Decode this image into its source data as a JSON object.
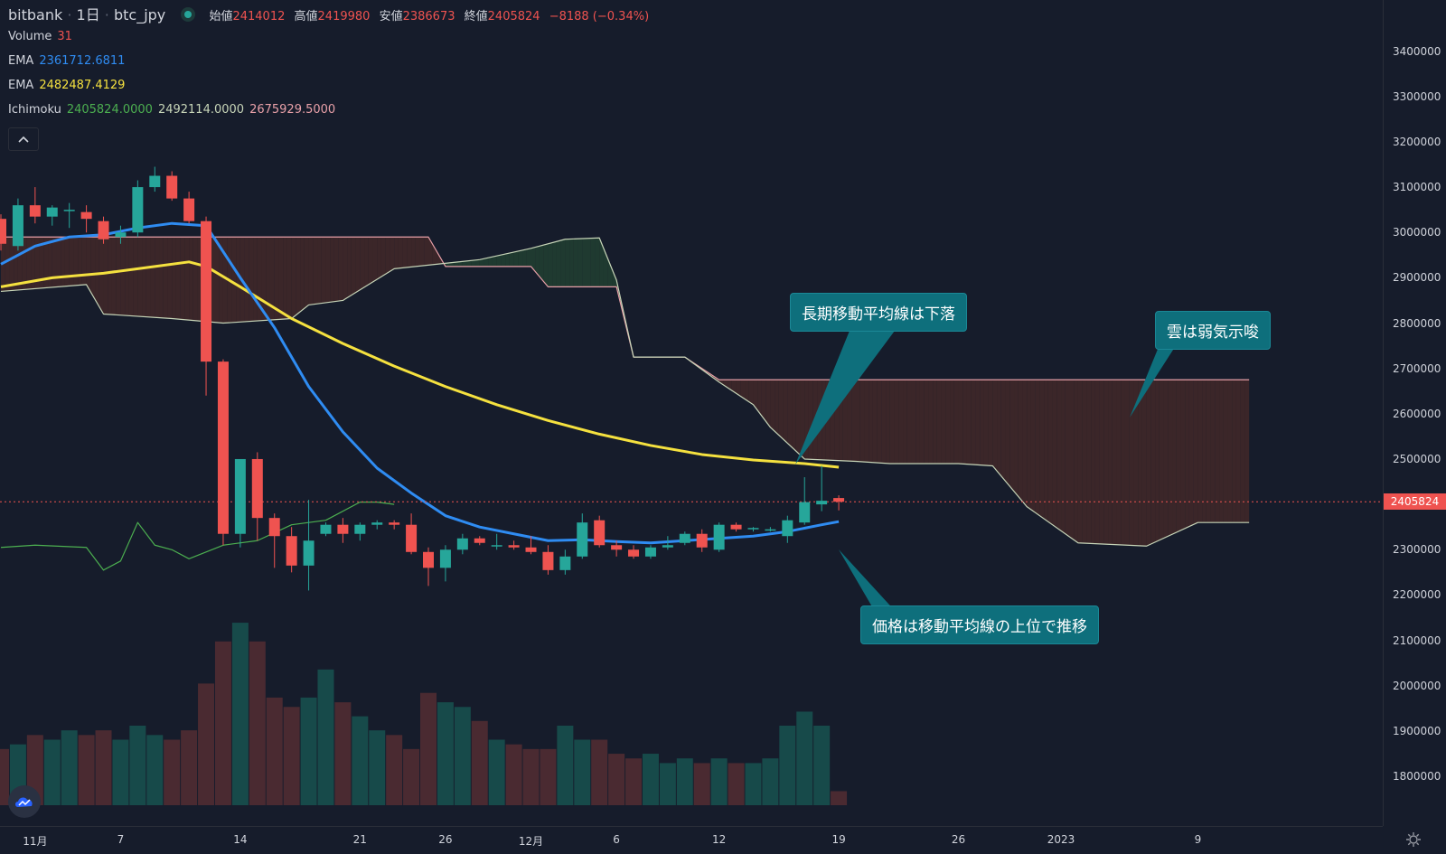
{
  "header": {
    "exchange": "bitbank",
    "interval": "1日",
    "symbol": "btc_jpy",
    "open_label": "始値",
    "open_value": "2414012",
    "high_label": "高値",
    "high_value": "2419980",
    "low_label": "安値",
    "low_value": "2386673",
    "close_label": "終値",
    "close_value": "2405824",
    "change": "−8188 (−0.34%)"
  },
  "indicators": {
    "volume_label": "Volume",
    "volume_value": "31",
    "ema1_label": "EMA",
    "ema1_value": "2361712.6811",
    "ema2_label": "EMA",
    "ema2_value": "2482487.4129",
    "ichimoku_label": "Ichimoku",
    "ichimoku_v1": "2405824.0000",
    "ichimoku_v2": "2492114.0000",
    "ichimoku_v3": "2675929.5000"
  },
  "callouts": {
    "long_ma": "長期移動平均線は下落",
    "cloud": "雲は弱気示唆",
    "price": "価格は移動平均線の上位で推移"
  },
  "current_price_tag": "2405824",
  "colors": {
    "up": "#26a69a",
    "down": "#ef5350",
    "ema_short": "#2f8cf2",
    "ema_long": "#f5e13f",
    "span_a": "#4caf50",
    "span_b": "#e8a0a8",
    "lagging": "#c7d5b8",
    "cloud_bear": "#3b2629",
    "cloud_bull": "#1f3a30"
  },
  "chart_data": {
    "type": "candlestick",
    "y_axis": {
      "min": 1750000,
      "max": 3500000,
      "ticks": [
        1800000,
        1900000,
        2000000,
        2100000,
        2200000,
        2300000,
        2400000,
        2500000,
        2600000,
        2700000,
        2800000,
        2900000,
        3000000,
        3100000,
        3200000,
        3300000,
        3400000
      ]
    },
    "x_ticks": [
      {
        "label": "11月",
        "day": 2
      },
      {
        "label": "7",
        "day": 7
      },
      {
        "label": "14",
        "day": 14
      },
      {
        "label": "21",
        "day": 21
      },
      {
        "label": "26",
        "day": 26
      },
      {
        "label": "12月",
        "day": 31
      },
      {
        "label": "6",
        "day": 36
      },
      {
        "label": "12",
        "day": 42
      },
      {
        "label": "19",
        "day": 49
      },
      {
        "label": "26",
        "day": 56
      },
      {
        "label": "2023",
        "day": 62
      },
      {
        "label": "9",
        "day": 70
      }
    ],
    "candles": [
      [
        0,
        3030000,
        3040000,
        2960000,
        2975000
      ],
      [
        1,
        2970000,
        3075000,
        2960000,
        3060000
      ],
      [
        2,
        3060000,
        3100000,
        3020000,
        3035000
      ],
      [
        3,
        3035000,
        3060000,
        3015000,
        3055000
      ],
      [
        4,
        3050000,
        3065000,
        3010000,
        3050000
      ],
      [
        5,
        3045000,
        3060000,
        3000000,
        3030000
      ],
      [
        6,
        3025000,
        3035000,
        2975000,
        2985000
      ],
      [
        7,
        2990000,
        3015000,
        2975000,
        3000000
      ],
      [
        8,
        3000000,
        3115000,
        2990000,
        3100000
      ],
      [
        9,
        3100000,
        3145000,
        3090000,
        3125000
      ],
      [
        10,
        3125000,
        3135000,
        3070000,
        3075000
      ],
      [
        11,
        3075000,
        3090000,
        3020000,
        3025000
      ],
      [
        12,
        3025000,
        3035000,
        2640000,
        2715000
      ],
      [
        13,
        2715000,
        2720000,
        2310000,
        2335000
      ],
      [
        14,
        2335000,
        2490000,
        2305000,
        2500000
      ],
      [
        15,
        2500000,
        2515000,
        2320000,
        2370000
      ],
      [
        16,
        2370000,
        2380000,
        2260000,
        2330000
      ],
      [
        17,
        2330000,
        2350000,
        2250000,
        2265000
      ],
      [
        18,
        2265000,
        2410000,
        2210000,
        2320000
      ],
      [
        19,
        2335000,
        2360000,
        2330000,
        2355000
      ],
      [
        20,
        2355000,
        2370000,
        2315000,
        2335000
      ],
      [
        21,
        2335000,
        2360000,
        2320000,
        2355000
      ],
      [
        22,
        2355000,
        2365000,
        2345000,
        2360000
      ],
      [
        23,
        2360000,
        2365000,
        2345000,
        2355000
      ],
      [
        24,
        2355000,
        2380000,
        2290000,
        2295000
      ],
      [
        25,
        2295000,
        2305000,
        2220000,
        2260000
      ],
      [
        26,
        2260000,
        2310000,
        2230000,
        2300000
      ],
      [
        27,
        2300000,
        2335000,
        2290000,
        2325000
      ],
      [
        28,
        2325000,
        2330000,
        2310000,
        2315000
      ],
      [
        29,
        2310000,
        2335000,
        2300000,
        2310000
      ],
      [
        30,
        2310000,
        2320000,
        2300000,
        2305000
      ],
      [
        31,
        2305000,
        2330000,
        2290000,
        2295000
      ],
      [
        32,
        2295000,
        2310000,
        2245000,
        2255000
      ],
      [
        33,
        2255000,
        2300000,
        2245000,
        2285000
      ],
      [
        34,
        2285000,
        2380000,
        2280000,
        2360000
      ],
      [
        35,
        2365000,
        2375000,
        2305000,
        2310000
      ],
      [
        36,
        2310000,
        2320000,
        2285000,
        2300000
      ],
      [
        37,
        2300000,
        2310000,
        2280000,
        2285000
      ],
      [
        38,
        2285000,
        2310000,
        2280000,
        2305000
      ],
      [
        39,
        2305000,
        2330000,
        2300000,
        2310000
      ],
      [
        40,
        2315000,
        2340000,
        2310000,
        2335000
      ],
      [
        41,
        2335000,
        2345000,
        2295000,
        2305000
      ],
      [
        42,
        2300000,
        2360000,
        2295000,
        2355000
      ],
      [
        43,
        2355000,
        2360000,
        2340000,
        2345000
      ],
      [
        44,
        2345000,
        2350000,
        2340000,
        2348000
      ],
      [
        45,
        2343000,
        2350000,
        2340000,
        2345000
      ],
      [
        46,
        2330000,
        2375000,
        2315000,
        2365000
      ],
      [
        47,
        2360000,
        2460000,
        2355000,
        2405000
      ],
      [
        48,
        2400000,
        2485000,
        2385000,
        2408000
      ],
      [
        49,
        2414012,
        2419980,
        2386673,
        2405824
      ]
    ],
    "volume": [
      1.2,
      1.3,
      1.5,
      1.4,
      1.6,
      1.5,
      1.6,
      1.4,
      1.7,
      1.5,
      1.4,
      1.6,
      2.6,
      3.5,
      3.9,
      3.5,
      2.3,
      2.1,
      2.3,
      2.9,
      2.2,
      1.9,
      1.6,
      1.5,
      1.2,
      2.4,
      2.2,
      2.1,
      1.8,
      1.4,
      1.3,
      1.2,
      1.2,
      1.7,
      1.4,
      1.4,
      1.1,
      1.0,
      1.1,
      0.9,
      1.0,
      0.9,
      1.0,
      0.9,
      0.9,
      1.0,
      1.7,
      2.0,
      1.7,
      0.3
    ],
    "volume_max": 4.5,
    "ema_short": [
      [
        0,
        2930000
      ],
      [
        2,
        2970000
      ],
      [
        4,
        2990000
      ],
      [
        6,
        2995000
      ],
      [
        8,
        3010000
      ],
      [
        10,
        3020000
      ],
      [
        12,
        3015000
      ],
      [
        14,
        2900000
      ],
      [
        16,
        2790000
      ],
      [
        18,
        2660000
      ],
      [
        20,
        2560000
      ],
      [
        22,
        2480000
      ],
      [
        24,
        2425000
      ],
      [
        26,
        2375000
      ],
      [
        28,
        2350000
      ],
      [
        30,
        2335000
      ],
      [
        32,
        2320000
      ],
      [
        34,
        2322000
      ],
      [
        36,
        2318000
      ],
      [
        38,
        2315000
      ],
      [
        40,
        2320000
      ],
      [
        42,
        2325000
      ],
      [
        44,
        2330000
      ],
      [
        46,
        2340000
      ],
      [
        48,
        2355000
      ],
      [
        49,
        2362000
      ]
    ],
    "ema_long": [
      [
        0,
        2880000
      ],
      [
        3,
        2900000
      ],
      [
        6,
        2910000
      ],
      [
        9,
        2925000
      ],
      [
        11,
        2935000
      ],
      [
        12,
        2925000
      ],
      [
        14,
        2880000
      ],
      [
        17,
        2810000
      ],
      [
        20,
        2755000
      ],
      [
        23,
        2705000
      ],
      [
        26,
        2660000
      ],
      [
        29,
        2620000
      ],
      [
        32,
        2585000
      ],
      [
        35,
        2555000
      ],
      [
        38,
        2530000
      ],
      [
        41,
        2510000
      ],
      [
        44,
        2498000
      ],
      [
        47,
        2490000
      ],
      [
        49,
        2482000
      ]
    ],
    "ichimoku_span_b": [
      [
        0,
        2990000
      ],
      [
        25,
        2990000
      ],
      [
        26,
        2925000
      ],
      [
        31,
        2925000
      ],
      [
        32,
        2880000
      ],
      [
        36,
        2880000
      ],
      [
        37,
        2725000
      ],
      [
        40,
        2725000
      ],
      [
        42,
        2675000
      ],
      [
        73,
        2675000
      ]
    ],
    "ichimoku_span_a": [
      [
        0,
        2870000
      ],
      [
        5,
        2885000
      ],
      [
        6,
        2820000
      ],
      [
        10,
        2810000
      ],
      [
        13,
        2800000
      ],
      [
        17,
        2810000
      ],
      [
        18,
        2840000
      ],
      [
        20,
        2850000
      ],
      [
        23,
        2920000
      ],
      [
        28,
        2940000
      ],
      [
        31,
        2965000
      ],
      [
        33,
        2985000
      ],
      [
        35,
        2988000
      ],
      [
        36,
        2895000
      ],
      [
        37,
        2725000
      ],
      [
        40,
        2725000
      ],
      [
        42,
        2670000
      ],
      [
        44,
        2620000
      ],
      [
        45,
        2570000
      ],
      [
        47,
        2500000
      ],
      [
        50,
        2495000
      ],
      [
        52,
        2490000
      ],
      [
        56,
        2490000
      ],
      [
        58,
        2485000
      ],
      [
        60,
        2395000
      ],
      [
        63,
        2315000
      ],
      [
        67,
        2308000
      ],
      [
        70,
        2360000
      ],
      [
        73,
        2360000
      ]
    ],
    "ichimoku_lagging": [
      [
        0,
        2305000
      ],
      [
        2,
        2310000
      ],
      [
        5,
        2305000
      ],
      [
        6,
        2255000
      ],
      [
        7,
        2275000
      ],
      [
        8,
        2360000
      ],
      [
        9,
        2310000
      ],
      [
        10,
        2300000
      ],
      [
        11,
        2280000
      ],
      [
        13,
        2310000
      ],
      [
        15,
        2320000
      ],
      [
        17,
        2355000
      ],
      [
        19,
        2365000
      ],
      [
        21,
        2405000
      ],
      [
        22,
        2405000
      ],
      [
        23,
        2400000
      ]
    ],
    "current_price": 2405824
  }
}
